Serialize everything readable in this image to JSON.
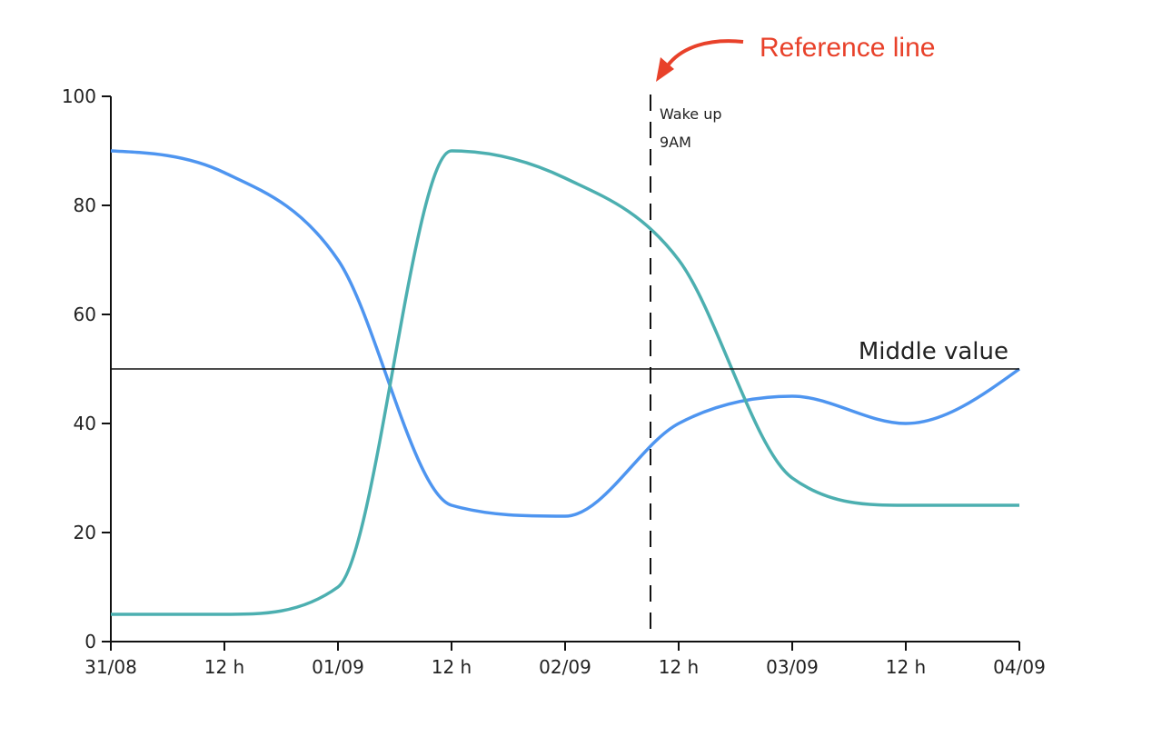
{
  "chart_data": {
    "type": "line",
    "x": [
      "31/08 00:00",
      "31/08 12:00",
      "01/09 00:00",
      "01/09 12:00",
      "02/09 00:00",
      "02/09 12:00",
      "03/09 00:00",
      "03/09 12:00",
      "04/09 00:00"
    ],
    "x_tick_labels": [
      "31/08",
      "12 h",
      "01/09",
      "12 h",
      "02/09",
      "12 h",
      "03/09",
      "12 h",
      "04/09"
    ],
    "y_ticks": [
      0,
      20,
      40,
      60,
      80,
      100
    ],
    "ylim": [
      0,
      100
    ],
    "grid": false,
    "series": [
      {
        "values": [
          90,
          86,
          70,
          25,
          23,
          40,
          45,
          40,
          50
        ],
        "color": "#4e95f0"
      },
      {
        "values": [
          5,
          5,
          10,
          90,
          85,
          70,
          30,
          25,
          25
        ],
        "color": "#4cafb0"
      }
    ],
    "horizontal_reference": {
      "value": 50,
      "label": "Middle value"
    },
    "vertical_reference": {
      "x": "02/09 09:00",
      "label_line1": "Wake up",
      "label_line2": "9AM"
    },
    "callout": {
      "text": "Reference line",
      "color": "#e8412a"
    }
  }
}
